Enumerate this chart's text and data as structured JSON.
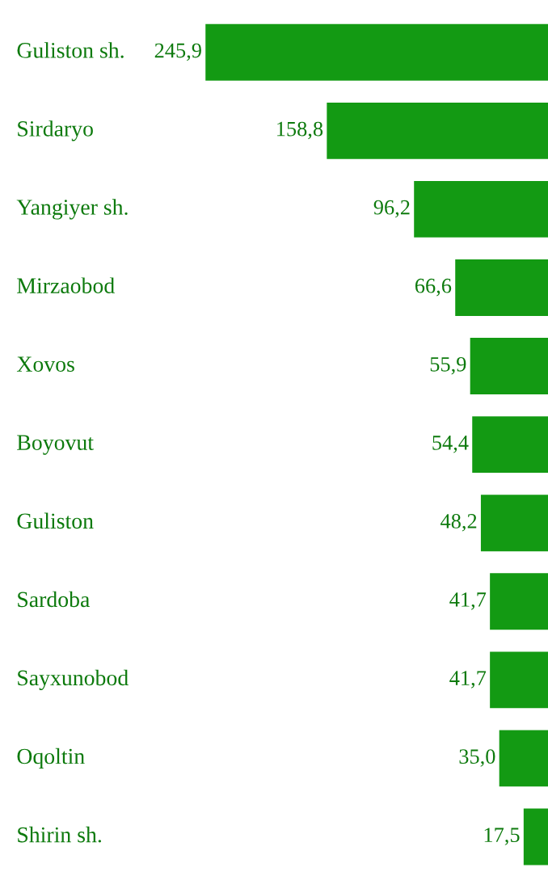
{
  "chart_data": {
    "type": "bar",
    "orientation": "horizontal",
    "categories": [
      "Guliston sh.",
      "Sirdaryo",
      "Yangiyer sh.",
      "Mirzaobod",
      "Xovos",
      "Boyovut",
      "Guliston",
      "Sardoba",
      "Sayxunobod",
      "Oqoltin",
      "Shirin sh."
    ],
    "values": [
      245.9,
      158.8,
      96.2,
      66.6,
      55.9,
      54.4,
      48.2,
      41.7,
      41.7,
      35.0,
      17.5
    ],
    "value_labels": [
      "245,9",
      "158,8",
      "96,2",
      "66,6",
      "55,9",
      "54,4",
      "48,2",
      "41,7",
      "41,7",
      "35,0",
      "17,5"
    ],
    "color": "#139a13"
  }
}
